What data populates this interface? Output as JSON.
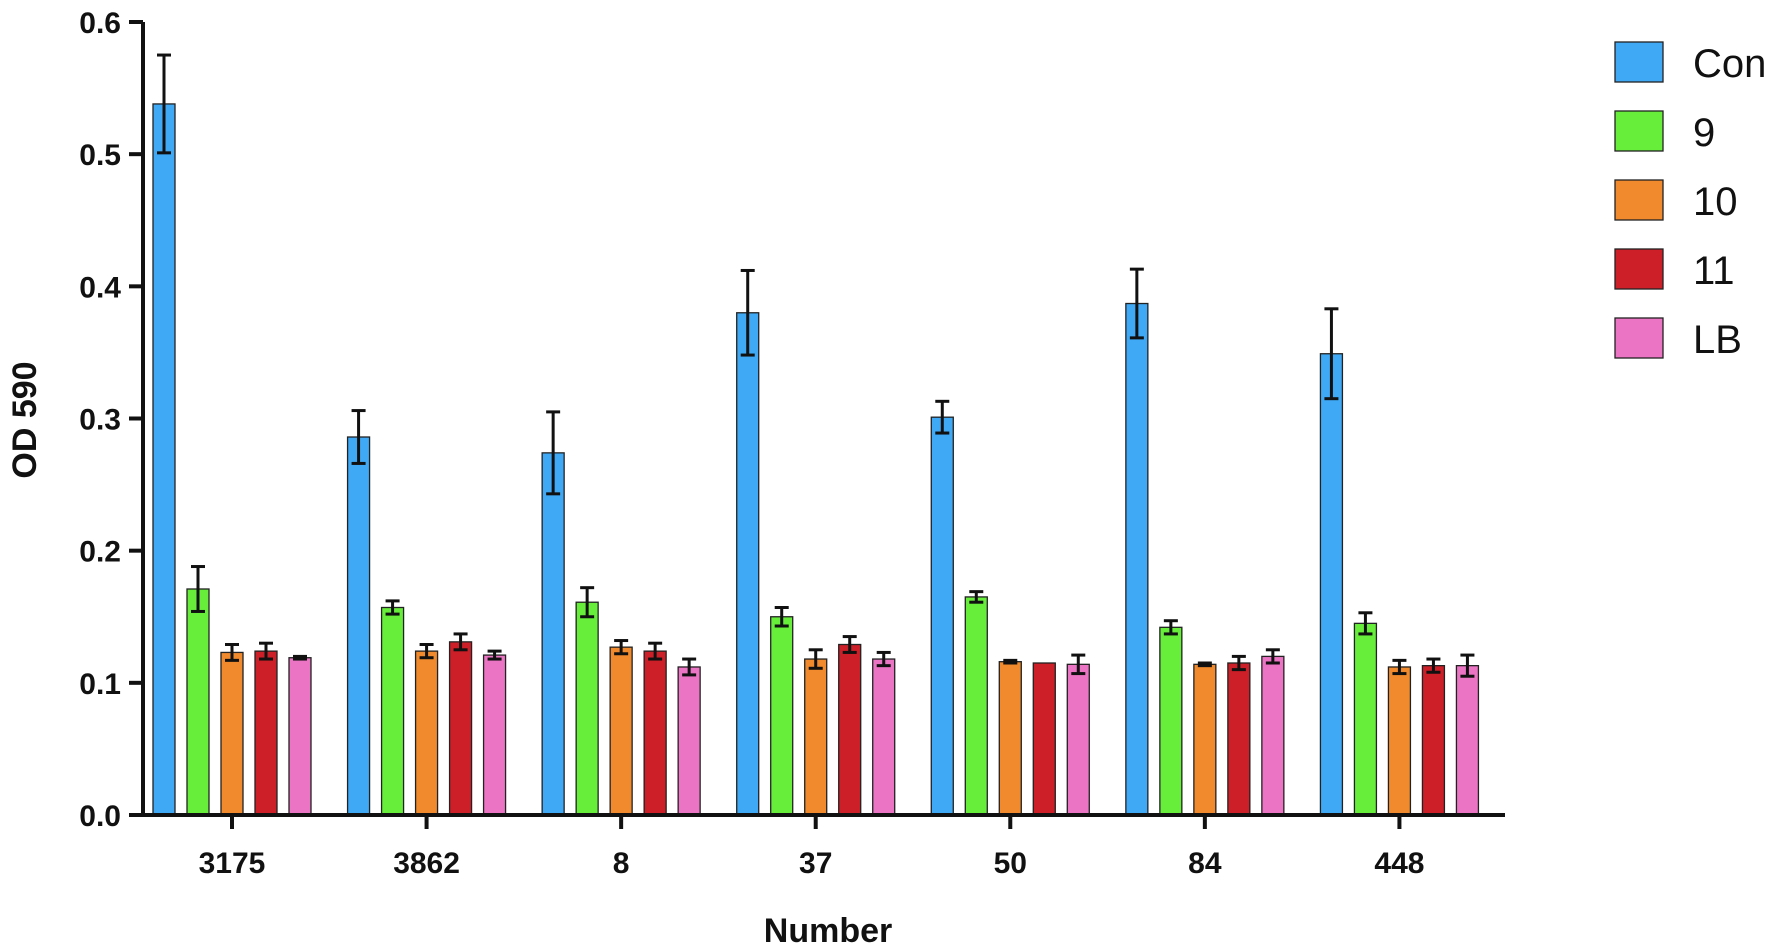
{
  "chart_data": {
    "type": "bar",
    "title": "",
    "xlabel": "Number",
    "ylabel": "OD 590",
    "ylim": [
      0,
      0.6
    ],
    "yticks": [
      "0.0",
      "0.1",
      "0.2",
      "0.3",
      "0.4",
      "0.5",
      "0.6"
    ],
    "grid": false,
    "legend_position": "top-right",
    "error_bars": true,
    "categories": [
      "3175",
      "3862",
      "8",
      "37",
      "50",
      "84",
      "448"
    ],
    "series": [
      {
        "name": "Con",
        "color": "#3fa9f5",
        "values": [
          0.538,
          0.286,
          0.274,
          0.38,
          0.301,
          0.387,
          0.349
        ],
        "errors": [
          0.037,
          0.02,
          0.031,
          0.032,
          0.012,
          0.026,
          0.034
        ]
      },
      {
        "name": "9",
        "color": "#66ee3a",
        "values": [
          0.171,
          0.157,
          0.161,
          0.15,
          0.165,
          0.142,
          0.145
        ],
        "errors": [
          0.017,
          0.005,
          0.011,
          0.007,
          0.004,
          0.005,
          0.008
        ]
      },
      {
        "name": "10",
        "color": "#f08a2d",
        "values": [
          0.123,
          0.124,
          0.127,
          0.118,
          0.116,
          0.114,
          0.112
        ],
        "errors": [
          0.006,
          0.005,
          0.005,
          0.007,
          0.001,
          0.001,
          0.005
        ]
      },
      {
        "name": "11",
        "color": "#cc1f27",
        "values": [
          0.124,
          0.131,
          0.124,
          0.129,
          0.115,
          0.115,
          0.113
        ],
        "errors": [
          0.006,
          0.006,
          0.006,
          0.006,
          0.0,
          0.005,
          0.005
        ]
      },
      {
        "name": "LB",
        "color": "#ec74c4",
        "values": [
          0.119,
          0.121,
          0.112,
          0.118,
          0.114,
          0.12,
          0.113
        ],
        "errors": [
          0.001,
          0.003,
          0.006,
          0.005,
          0.007,
          0.005,
          0.008
        ]
      }
    ]
  }
}
